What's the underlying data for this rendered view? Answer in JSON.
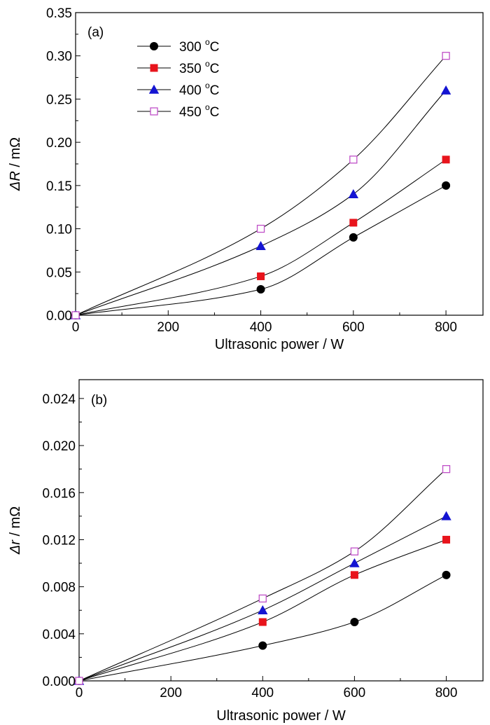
{
  "chart_data": [
    {
      "type": "line",
      "panel_label": "(a)",
      "xlabel": "Ultrasonic power / W",
      "ylabel_symbol": "ΔR",
      "ylabel_unit": " / mΩ",
      "xlim": [
        0,
        880
      ],
      "ylim": [
        0,
        0.35
      ],
      "xticks": [
        0,
        200,
        400,
        600,
        800
      ],
      "xtick_labels": [
        "0",
        "200",
        "400",
        "600",
        "800"
      ],
      "yticks": [
        0,
        0.05,
        0.1,
        0.15,
        0.2,
        0.25,
        0.3,
        0.35
      ],
      "ytick_labels": [
        "0.00",
        "0.05",
        "0.10",
        "0.15",
        "0.20",
        "0.25",
        "0.30",
        "0.35"
      ],
      "grid": false,
      "legend_position": "top-left",
      "x": [
        0,
        400,
        600,
        800
      ],
      "series": [
        {
          "name": "300",
          "unit": "°C",
          "values": [
            0,
            0.03,
            0.09,
            0.15
          ],
          "marker": "circle",
          "color": "#000000"
        },
        {
          "name": "350",
          "unit": "°C",
          "values": [
            0,
            0.045,
            0.107,
            0.18
          ],
          "marker": "square",
          "color": "#e8141c"
        },
        {
          "name": "400",
          "unit": "°C",
          "values": [
            0,
            0.08,
            0.14,
            0.26
          ],
          "marker": "triangle",
          "color": "#1414d2"
        },
        {
          "name": "450",
          "unit": "°C",
          "values": [
            0,
            0.1,
            0.18,
            0.3
          ],
          "marker": "open-square",
          "color": "#c050c8"
        }
      ]
    },
    {
      "type": "line",
      "panel_label": "(b)",
      "xlabel": "Ultrasonic power / W",
      "ylabel_symbol": "Δr",
      "ylabel_unit": " / mΩ",
      "xlim": [
        0,
        880
      ],
      "ylim": [
        0,
        0.0256
      ],
      "xticks": [
        0,
        200,
        400,
        600,
        800
      ],
      "xtick_labels": [
        "0",
        "200",
        "400",
        "600",
        "800"
      ],
      "yticks": [
        0,
        0.004,
        0.008,
        0.012,
        0.016,
        0.02,
        0.024
      ],
      "ytick_labels": [
        "0.000",
        "0.004",
        "0.008",
        "0.012",
        "0.016",
        "0.020",
        "0.024"
      ],
      "grid": false,
      "x": [
        0,
        400,
        600,
        800
      ],
      "series": [
        {
          "name": "300",
          "unit": "°C",
          "values": [
            0,
            0.003,
            0.005,
            0.009
          ],
          "marker": "circle",
          "color": "#000000"
        },
        {
          "name": "350",
          "unit": "°C",
          "values": [
            0,
            0.005,
            0.009,
            0.012
          ],
          "marker": "square",
          "color": "#e8141c"
        },
        {
          "name": "400",
          "unit": "°C",
          "values": [
            0,
            0.006,
            0.01,
            0.014
          ],
          "marker": "triangle",
          "color": "#1414d2"
        },
        {
          "name": "450",
          "unit": "°C",
          "values": [
            0,
            0.007,
            0.011,
            0.018
          ],
          "marker": "open-square",
          "color": "#c050c8"
        }
      ]
    }
  ]
}
